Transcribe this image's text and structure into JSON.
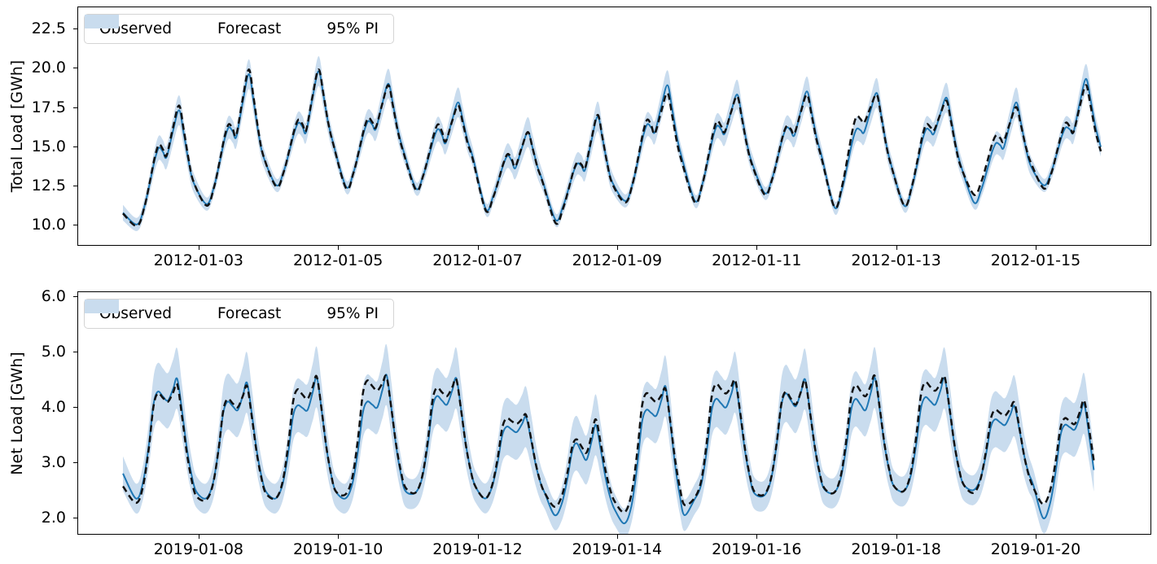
{
  "legend": {
    "observed_label": "Observed",
    "forecast_label": "Forecast",
    "pi_label": "95% PI"
  },
  "colors": {
    "observed": "#111111",
    "forecast": "#1f77b4",
    "pi_band": "#c9dcee",
    "axis": "#000000"
  },
  "chart_data": [
    {
      "type": "line",
      "ylabel": "Total Load [GWh]",
      "unit": "GWh",
      "y_tick_labels": [
        "22.5",
        "20.0",
        "17.5",
        "15.0",
        "12.5",
        "10.0"
      ],
      "y_ticks": [
        22.5,
        20.0,
        17.5,
        15.0,
        12.5,
        10.0
      ],
      "ylim": [
        8.69,
        23.87
      ],
      "x_tick_labels": [
        "2012-01-03",
        "2012-01-05",
        "2012-01-07",
        "2012-01-09",
        "2012-01-11",
        "2012-01-13",
        "2012-01-15"
      ],
      "x_ticks_hours": [
        24,
        72,
        120,
        168,
        216,
        264,
        312
      ],
      "xlim_hours": [
        -17.4,
        351.5
      ],
      "legend_position": "upper left",
      "grid": false,
      "series_names": [
        "Observed",
        "Forecast",
        "95% PI"
      ],
      "lead_point": {
        "hour": -2.0,
        "observed": 10.7,
        "forecast": 10.75
      },
      "end_hour": 334.4,
      "pi_halfwidth": {
        "min": 0.42,
        "max": 0.95
      },
      "template": [
        [
          2.8,
          "tr"
        ],
        [
          5.3,
          "w_sh",
          0.22
        ],
        [
          7.3,
          "w_sh",
          0.55
        ],
        [
          9.0,
          "w_sh",
          0.85
        ],
        [
          10.4,
          "sh"
        ],
        [
          11.8,
          "mid",
          0.55
        ],
        [
          13.0,
          "dip"
        ],
        [
          15.2,
          "w_pk",
          0.55
        ],
        [
          17.3,
          "pk"
        ],
        [
          18.9,
          "w_dn",
          0.8
        ],
        [
          20.6,
          "w_dn",
          0.55
        ],
        [
          22.4,
          "w_dn",
          0.36
        ]
      ],
      "days": [
        {
          "date": "2012-01-02",
          "observed": {
            "trough": 9.9,
            "shoulder": 15.1,
            "dip": 14.4,
            "peak": 17.6
          },
          "forecast": {
            "trough": 10.0,
            "shoulder": 14.9,
            "dip": 14.3,
            "peak": 17.3
          }
        },
        {
          "date": "2012-01-03",
          "observed": {
            "trough": 11.2,
            "shoulder": 16.4,
            "dip": 15.7,
            "peak": 19.9
          },
          "forecast": {
            "trough": 11.3,
            "shoulder": 16.2,
            "dip": 15.6,
            "peak": 19.6
          }
        },
        {
          "date": "2012-01-04",
          "observed": {
            "trough": 12.4,
            "shoulder": 16.7,
            "dip": 16.0,
            "peak": 19.9
          },
          "forecast": {
            "trough": 12.5,
            "shoulder": 16.5,
            "dip": 15.9,
            "peak": 19.8
          }
        },
        {
          "date": "2012-01-05",
          "observed": {
            "trough": 12.3,
            "shoulder": 16.8,
            "dip": 16.2,
            "peak": 18.9
          },
          "forecast": {
            "trough": 12.4,
            "shoulder": 16.6,
            "dip": 16.1,
            "peak": 19.0
          }
        },
        {
          "date": "2012-01-06",
          "observed": {
            "trough": 12.2,
            "shoulder": 16.4,
            "dip": 15.3,
            "peak": 17.6
          },
          "forecast": {
            "trough": 12.3,
            "shoulder": 16.1,
            "dip": 15.2,
            "peak": 17.8
          }
        },
        {
          "date": "2012-01-07",
          "observed": {
            "trough": 10.9,
            "shoulder": 14.5,
            "dip": 13.7,
            "peak": 15.9
          },
          "forecast": {
            "trough": 11.0,
            "shoulder": 14.4,
            "dip": 13.6,
            "peak": 15.9
          }
        },
        {
          "date": "2012-01-08",
          "observed": {
            "trough": 10.1,
            "shoulder": 14.0,
            "dip": 13.6,
            "peak": 17.0
          },
          "forecast": {
            "trough": 10.3,
            "shoulder": 13.9,
            "dip": 13.5,
            "peak": 16.9
          }
        },
        {
          "date": "2012-01-09",
          "observed": {
            "trough": 11.4,
            "shoulder": 16.7,
            "dip": 15.8,
            "peak": 18.4
          },
          "forecast": {
            "trough": 11.5,
            "shoulder": 16.4,
            "dip": 15.9,
            "peak": 18.9
          }
        },
        {
          "date": "2012-01-10",
          "observed": {
            "trough": 11.4,
            "shoulder": 16.6,
            "dip": 15.9,
            "peak": 18.2
          },
          "forecast": {
            "trough": 11.5,
            "shoulder": 16.3,
            "dip": 15.8,
            "peak": 18.3
          }
        },
        {
          "date": "2012-01-11",
          "observed": {
            "trough": 11.9,
            "shoulder": 16.3,
            "dip": 15.8,
            "peak": 18.3
          },
          "forecast": {
            "trough": 12.0,
            "shoulder": 16.2,
            "dip": 15.7,
            "peak": 18.5
          }
        },
        {
          "date": "2012-01-12",
          "observed": {
            "trough": 11.1,
            "shoulder": 16.9,
            "dip": 16.5,
            "peak": 18.3
          },
          "forecast": {
            "trough": 11.1,
            "shoulder": 16.1,
            "dip": 15.9,
            "peak": 18.4
          }
        },
        {
          "date": "2012-01-13",
          "observed": {
            "trough": 11.2,
            "shoulder": 16.4,
            "dip": 16.0,
            "peak": 17.9
          },
          "forecast": {
            "trough": 11.2,
            "shoulder": 16.1,
            "dip": 15.8,
            "peak": 18.1
          }
        },
        {
          "date": "2012-01-14",
          "observed": {
            "trough": 11.9,
            "shoulder": 15.7,
            "dip": 15.3,
            "peak": 17.5
          },
          "forecast": {
            "trough": 11.4,
            "shoulder": 15.2,
            "dip": 14.9,
            "peak": 17.8
          }
        },
        {
          "date": "2012-01-15",
          "observed": {
            "trough": 12.3,
            "shoulder": 16.5,
            "dip": 15.9,
            "peak": 18.9
          },
          "forecast": {
            "trough": 12.5,
            "shoulder": 16.2,
            "dip": 15.9,
            "peak": 19.3
          }
        }
      ]
    },
    {
      "type": "line",
      "ylabel": "Net Load [GWh]",
      "unit": "GWh",
      "y_tick_labels": [
        "6.0",
        "5.0",
        "4.0",
        "3.0",
        "2.0"
      ],
      "y_ticks": [
        6.0,
        5.0,
        4.0,
        3.0,
        2.0
      ],
      "ylim": [
        1.71,
        6.08
      ],
      "x_tick_labels": [
        "2019-01-08",
        "2019-01-10",
        "2019-01-12",
        "2019-01-14",
        "2019-01-16",
        "2019-01-18",
        "2019-01-20"
      ],
      "x_ticks_hours": [
        24,
        72,
        120,
        168,
        216,
        264,
        312
      ],
      "xlim_hours": [
        -17.4,
        351.5
      ],
      "legend_position": "upper left",
      "grid": false,
      "series_names": [
        "Observed",
        "Forecast",
        "95% PI"
      ],
      "lead_point": {
        "hour": -2.0,
        "observed": 2.57,
        "forecast": 2.8
      },
      "end_hour": 332.0,
      "pi_halfwidth": {
        "min": 0.27,
        "max": 0.55
      },
      "template": [
        [
          2.5,
          "tr"
        ],
        [
          4.9,
          "w_sh",
          0.15
        ],
        [
          6.9,
          "w_sh",
          0.5
        ],
        [
          8.5,
          "w_sh",
          0.88
        ],
        [
          10.0,
          "sh"
        ],
        [
          11.8,
          "mid",
          0.45
        ],
        [
          13.5,
          "dip"
        ],
        [
          15.3,
          "w_pk",
          0.55
        ],
        [
          16.7,
          "pk"
        ],
        [
          18.4,
          "w_dn",
          0.72
        ],
        [
          20.0,
          "w_dn",
          0.42
        ],
        [
          21.6,
          "w_dn",
          0.2
        ],
        [
          23.2,
          "w_dn",
          0.06
        ]
      ],
      "days": [
        {
          "date": "2019-01-07",
          "observed": {
            "trough": 2.27,
            "shoulder": 4.25,
            "dip": 4.1,
            "peak": 4.41
          },
          "forecast": {
            "trough": 2.35,
            "shoulder": 4.28,
            "dip": 4.12,
            "peak": 4.51
          }
        },
        {
          "date": "2019-01-08",
          "observed": {
            "trough": 2.32,
            "shoulder": 4.15,
            "dip": 4.0,
            "peak": 4.38
          },
          "forecast": {
            "trough": 2.35,
            "shoulder": 4.1,
            "dip": 3.95,
            "peak": 4.44
          }
        },
        {
          "date": "2019-01-09",
          "observed": {
            "trough": 2.35,
            "shoulder": 4.32,
            "dip": 4.15,
            "peak": 4.55
          },
          "forecast": {
            "trough": 2.35,
            "shoulder": 4.03,
            "dip": 3.95,
            "peak": 4.54
          }
        },
        {
          "date": "2019-01-10",
          "observed": {
            "trough": 2.42,
            "shoulder": 4.48,
            "dip": 4.3,
            "peak": 4.55
          },
          "forecast": {
            "trough": 2.35,
            "shoulder": 4.1,
            "dip": 4.0,
            "peak": 4.58
          }
        },
        {
          "date": "2019-01-11",
          "observed": {
            "trough": 2.45,
            "shoulder": 4.35,
            "dip": 4.2,
            "peak": 4.5
          },
          "forecast": {
            "trough": 2.45,
            "shoulder": 4.2,
            "dip": 4.05,
            "peak": 4.52
          }
        },
        {
          "date": "2019-01-12",
          "observed": {
            "trough": 2.35,
            "shoulder": 3.8,
            "dip": 3.7,
            "peak": 3.86
          },
          "forecast": {
            "trough": 2.35,
            "shoulder": 3.65,
            "dip": 3.55,
            "peak": 3.82
          }
        },
        {
          "date": "2019-01-13",
          "observed": {
            "trough": 2.2,
            "shoulder": 3.42,
            "dip": 3.18,
            "peak": 3.78
          },
          "forecast": {
            "trough": 2.05,
            "shoulder": 3.35,
            "dip": 3.05,
            "peak": 3.68
          }
        },
        {
          "date": "2019-01-14",
          "observed": {
            "trough": 2.1,
            "shoulder": 4.25,
            "dip": 4.1,
            "peak": 4.32
          },
          "forecast": {
            "trough": 1.9,
            "shoulder": 3.95,
            "dip": 3.85,
            "peak": 4.37
          }
        },
        {
          "date": "2019-01-15",
          "observed": {
            "trough": 2.35,
            "shoulder": 4.42,
            "dip": 4.25,
            "peak": 4.48
          },
          "forecast": {
            "trough": 2.32,
            "shoulder": 4.15,
            "dip": 4.0,
            "peak": 4.44
          }
        },
        {
          "date": "2019-01-16",
          "observed": {
            "trough": 2.42,
            "shoulder": 4.28,
            "dip": 4.05,
            "peak": 4.48
          },
          "forecast": {
            "trough": 2.4,
            "shoulder": 4.25,
            "dip": 4.02,
            "peak": 4.5
          }
        },
        {
          "date": "2019-01-17",
          "observed": {
            "trough": 2.45,
            "shoulder": 4.4,
            "dip": 4.2,
            "peak": 4.56
          },
          "forecast": {
            "trough": 2.45,
            "shoulder": 4.15,
            "dip": 3.95,
            "peak": 4.53
          }
        },
        {
          "date": "2019-01-18",
          "observed": {
            "trough": 2.48,
            "shoulder": 4.45,
            "dip": 4.3,
            "peak": 4.55
          },
          "forecast": {
            "trough": 2.48,
            "shoulder": 4.18,
            "dip": 4.05,
            "peak": 4.52
          }
        },
        {
          "date": "2019-01-19",
          "observed": {
            "trough": 2.45,
            "shoulder": 3.95,
            "dip": 3.85,
            "peak": 4.08
          },
          "forecast": {
            "trough": 2.5,
            "shoulder": 3.78,
            "dip": 3.68,
            "peak": 4.02
          }
        },
        {
          "date": "2019-01-20",
          "observed": {
            "trough": 2.25,
            "shoulder": 3.8,
            "dip": 3.7,
            "peak": 4.12
          },
          "forecast": {
            "trough": 2.0,
            "shoulder": 3.68,
            "dip": 3.6,
            "peak": 4.06
          }
        }
      ]
    }
  ]
}
